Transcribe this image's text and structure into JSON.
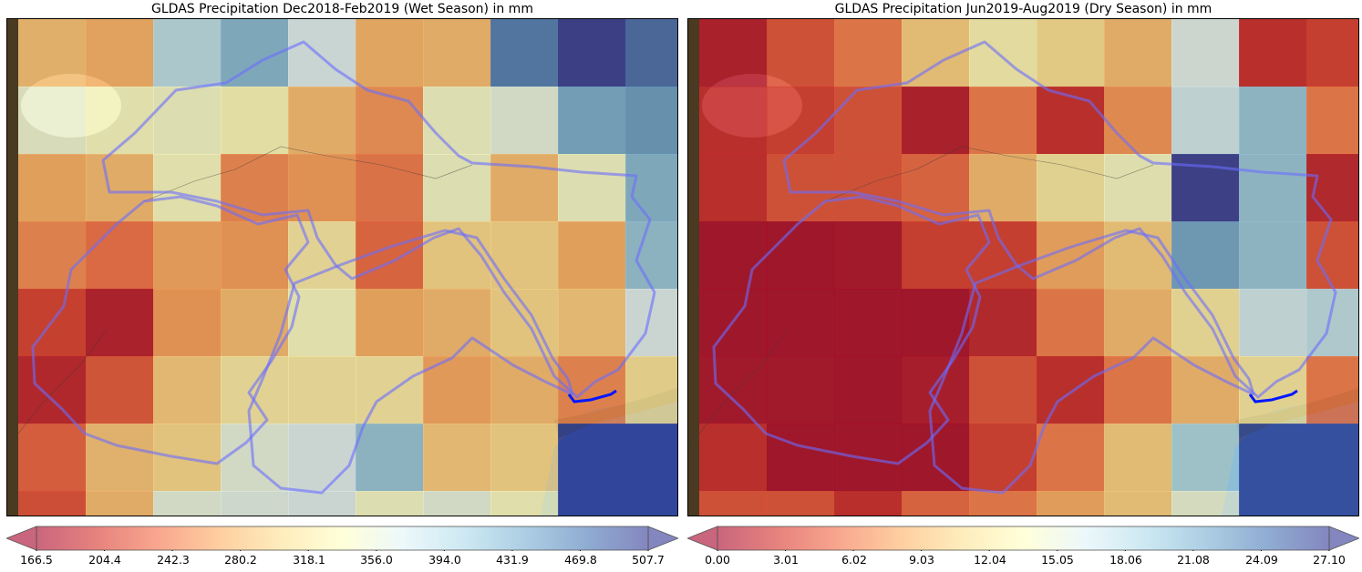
{
  "panels": [
    {
      "title": "GLDAS Precipitation Dec2018-Feb2019 (Wet Season) in mm",
      "colorbar": {
        "min": 166.5,
        "max": 507.7,
        "cmap": "RdYlBu",
        "tick_labels": [
          "166.5",
          "204.4",
          "242.3",
          "280.2",
          "318.1",
          "356.0",
          "394.0",
          "431.9",
          "469.8",
          "507.7"
        ]
      },
      "grid_values": [
        [
          283,
          272,
          395,
          430,
          372,
          275,
          280,
          470,
          507,
          480
        ],
        [
          352,
          340,
          345,
          335,
          280,
          255,
          345,
          360,
          440,
          450
        ],
        [
          270,
          280,
          340,
          250,
          260,
          240,
          345,
          280,
          345,
          430
        ],
        [
          250,
          235,
          265,
          260,
          320,
          230,
          300,
          300,
          270,
          420
        ],
        [
          205,
          180,
          260,
          280,
          340,
          270,
          280,
          300,
          290,
          370
        ],
        [
          185,
          220,
          290,
          320,
          320,
          320,
          265,
          280,
          250,
          310
        ],
        [
          225,
          285,
          300,
          360,
          370,
          420,
          290,
          300,
          500,
          500
        ],
        [
          215,
          280,
          360,
          365,
          370,
          345,
          360,
          340,
          500,
          500
        ]
      ]
    },
    {
      "title": "GLDAS Precipitation Jun2019-Aug2019 (Dry Season) in mm",
      "colorbar": {
        "min": 0.0,
        "max": 27.1,
        "cmap": "RdYlBu",
        "tick_labels": [
          "0.00",
          "3.01",
          "6.02",
          "9.03",
          "12.04",
          "15.05",
          "18.06",
          "21.08",
          "24.09",
          "27.10"
        ]
      },
      "grid_values": [
        [
          1.0,
          4.0,
          6.0,
          10.0,
          13.0,
          11.0,
          9.0,
          16.0,
          2.0,
          3.0
        ],
        [
          2.0,
          3.0,
          4.0,
          1.0,
          6.0,
          2.0,
          7.0,
          17.0,
          20.0,
          6.0
        ],
        [
          2.0,
          4.0,
          4.0,
          5.0,
          9.0,
          12.0,
          14.0,
          27.0,
          20.0,
          1.5
        ],
        [
          0.3,
          0.3,
          0.5,
          3.0,
          3.0,
          8.0,
          10.0,
          22.0,
          20.0,
          4.0
        ],
        [
          0.3,
          0.3,
          0.3,
          0.3,
          1.5,
          6.0,
          9.0,
          12.0,
          17.0,
          18.0
        ],
        [
          0.5,
          0.5,
          0.3,
          0.8,
          4.0,
          2.0,
          6.0,
          9.0,
          12.0,
          6.0
        ],
        [
          2.0,
          0.3,
          0.3,
          0.3,
          3.0,
          6.0,
          10.0,
          19.0,
          26.0,
          26.0
        ],
        [
          4.0,
          4.0,
          2.0,
          5.0,
          6.0,
          8.0,
          10.0,
          15.0,
          26.0,
          26.0
        ]
      ]
    }
  ]
}
